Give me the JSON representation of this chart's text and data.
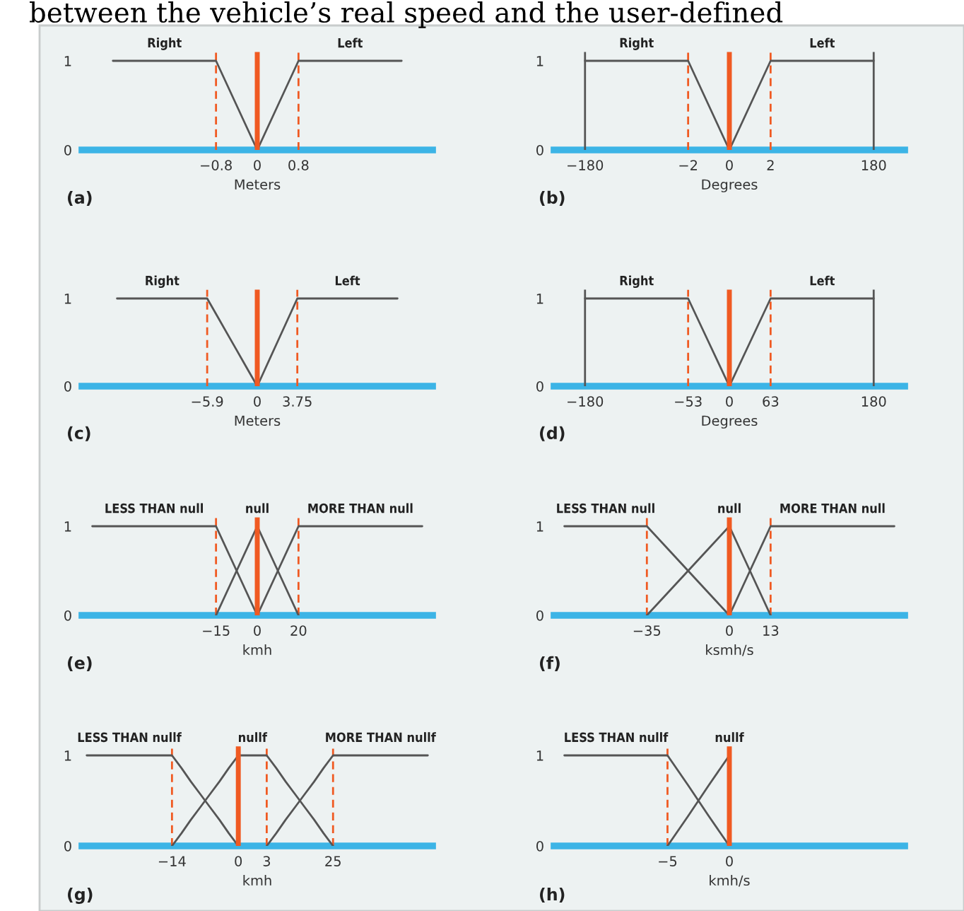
{
  "chart_data": [
    {
      "type": "line",
      "xlabel": "Meters",
      "annotations": [
        "(a)",
        "between the vehicle’s real speed and the user-defined"
      ],
      "categories": [
        null,
        null,
        null,
        null,
        null,
        null,
        "−0.8",
        null,
        "0",
        null,
        "0.8",
        null,
        null,
        null,
        null,
        null,
        null
      ],
      "series": [
        {
          "name": "Right",
          "color": "#555555",
          "values": [
            null,
            1,
            1,
            1,
            1,
            1,
            1,
            0.5,
            0,
            null,
            null,
            null,
            null,
            null,
            null,
            null,
            null
          ]
        },
        {
          "name": "Left",
          "color": "#555555",
          "values": [
            null,
            null,
            null,
            null,
            null,
            null,
            null,
            null,
            0,
            0.5,
            1,
            1,
            1,
            1,
            1,
            1,
            null
          ]
        }
      ],
      "ylim": [
        0,
        1.1
      ],
      "yticks": [
        0,
        1
      ],
      "ref_lines": [
        {
          "axis": "x",
          "value": "0",
          "color": "#f05a22",
          "line_style": "solid"
        },
        {
          "axis": "x",
          "value": "−0.8",
          "color": "#f05a22",
          "line_style": "dashed"
        },
        {
          "axis": "x",
          "value": "0.8",
          "color": "#f05a22",
          "line_style": "dashed"
        }
      ]
    },
    {
      "type": "line",
      "xlabel": "Degrees",
      "annotations": [
        "(b)"
      ],
      "categories": [
        null,
        "−180",
        null,
        null,
        null,
        null,
        "−2",
        null,
        "0",
        null,
        "2",
        null,
        null,
        null,
        null,
        "180",
        null
      ],
      "series": [
        {
          "name": "Right",
          "color": "#555555",
          "values": [
            null,
            1,
            1,
            1,
            1,
            1,
            1,
            0.5,
            0,
            null,
            null,
            null,
            null,
            null,
            null,
            null,
            null
          ]
        },
        {
          "name": "Left",
          "color": "#555555",
          "values": [
            null,
            null,
            null,
            null,
            null,
            null,
            null,
            null,
            0,
            0.5,
            1,
            1,
            1,
            1,
            1,
            1,
            null
          ]
        }
      ],
      "ylim": [
        0,
        1.1
      ],
      "yticks": [
        0,
        1
      ],
      "ref_lines": [
        {
          "axis": "x",
          "value": "0",
          "color": "#f05a22",
          "line_style": "solid"
        },
        {
          "axis": "x",
          "value": "−2",
          "color": "#f05a22",
          "line_style": "dashed"
        },
        {
          "axis": "x",
          "value": "2",
          "color": "#f05a22",
          "line_style": "dashed"
        },
        {
          "axis": "x",
          "value": "−180",
          "color": "#555555",
          "line_style": "solid"
        },
        {
          "axis": "x",
          "value": "180",
          "color": "#555555",
          "line_style": "solid"
        }
      ]
    },
    {
      "type": "line",
      "xlabel": "Meters",
      "annotations": [
        "(c)"
      ],
      "categories": [
        null,
        null,
        null,
        null,
        null,
        null,
        null,
        null,
        null,
        null,
        null,
        null,
        "−5.9",
        null,
        null,
        null,
        null,
        "0",
        null,
        null,
        null,
        "3.75",
        null,
        null,
        null,
        null,
        null,
        null,
        null,
        null,
        null,
        null,
        null,
        null,
        null
      ],
      "series": [
        {
          "name": "Right",
          "color": "#555555",
          "values": [
            null,
            null,
            null,
            1,
            1,
            1,
            1,
            1,
            1,
            1,
            1,
            1,
            1,
            0.8,
            0.6,
            0.4,
            0.2,
            0,
            null,
            null,
            null,
            null,
            null,
            null,
            null,
            null,
            null,
            null,
            null,
            null,
            null,
            null,
            null,
            null,
            null
          ]
        },
        {
          "name": "Left",
          "color": "#555555",
          "values": [
            null,
            null,
            null,
            null,
            null,
            null,
            null,
            null,
            null,
            null,
            null,
            null,
            null,
            null,
            null,
            null,
            null,
            0,
            0.25,
            0.5,
            0.75,
            1,
            1,
            1,
            1,
            1,
            1,
            1,
            1,
            1,
            1,
            1,
            null,
            null,
            null
          ]
        }
      ],
      "ylim": [
        0,
        1.1
      ],
      "yticks": [
        0,
        1
      ],
      "ref_lines": [
        {
          "axis": "x",
          "value": "0",
          "color": "#f05a22",
          "line_style": "solid"
        },
        {
          "axis": "x",
          "value": "−5.9",
          "color": "#f05a22",
          "line_style": "dashed"
        },
        {
          "axis": "x",
          "value": "3.75",
          "color": "#f05a22",
          "line_style": "dashed"
        }
      ]
    },
    {
      "type": "line",
      "xlabel": "Degrees",
      "annotations": [
        "(d)"
      ],
      "categories": [
        null,
        "−180",
        null,
        null,
        null,
        null,
        "−53",
        null,
        "0",
        null,
        "63",
        null,
        null,
        null,
        null,
        "180",
        null
      ],
      "series": [
        {
          "name": "Right",
          "color": "#555555",
          "values": [
            null,
            1,
            1,
            1,
            1,
            1,
            1,
            0.5,
            0,
            null,
            null,
            null,
            null,
            null,
            null,
            null,
            null
          ]
        },
        {
          "name": "Left",
          "color": "#555555",
          "values": [
            null,
            null,
            null,
            null,
            null,
            null,
            null,
            null,
            0,
            0.5,
            1,
            1,
            1,
            1,
            1,
            1,
            null
          ]
        }
      ],
      "ylim": [
        0,
        1.1
      ],
      "yticks": [
        0,
        1
      ],
      "ref_lines": [
        {
          "axis": "x",
          "value": "0",
          "color": "#f05a22",
          "line_style": "solid"
        },
        {
          "axis": "x",
          "value": "−53",
          "color": "#f05a22",
          "line_style": "dashed"
        },
        {
          "axis": "x",
          "value": "63",
          "color": "#f05a22",
          "line_style": "dashed"
        },
        {
          "axis": "x",
          "value": "−180",
          "color": "#555555",
          "line_style": "solid"
        },
        {
          "axis": "x",
          "value": "180",
          "color": "#555555",
          "line_style": "solid"
        }
      ]
    },
    {
      "type": "line",
      "xlabel": "kmh",
      "annotations": [
        "(e)"
      ],
      "categories": [
        null,
        null,
        null,
        null,
        null,
        null,
        "−15",
        null,
        "0",
        null,
        "20",
        null,
        null,
        null,
        null,
        null,
        null
      ],
      "series": [
        {
          "name": "LESS THAN null",
          "color": "#555555",
          "values": [
            1,
            1,
            1,
            1,
            1,
            1,
            1,
            0.5,
            0,
            null,
            null,
            null,
            null,
            null,
            null,
            null,
            null
          ]
        },
        {
          "name": "null",
          "color": "#555555",
          "values": [
            null,
            null,
            null,
            null,
            null,
            null,
            0,
            0.5,
            1,
            0.5,
            0,
            null,
            null,
            null,
            null,
            null,
            null
          ]
        },
        {
          "name": "MORE THAN null",
          "color": "#555555",
          "values": [
            null,
            null,
            null,
            null,
            null,
            null,
            null,
            null,
            0,
            0.5,
            1,
            1,
            1,
            1,
            1,
            1,
            1
          ]
        }
      ],
      "ylim": [
        0,
        1.1
      ],
      "yticks": [
        0,
        1
      ],
      "ref_lines": [
        {
          "axis": "x",
          "value": "0",
          "color": "#f05a22",
          "line_style": "solid"
        },
        {
          "axis": "x",
          "value": "−15",
          "color": "#f05a22",
          "line_style": "dashed"
        },
        {
          "axis": "x",
          "value": "20",
          "color": "#f05a22",
          "line_style": "dashed"
        }
      ]
    },
    {
      "type": "line",
      "xlabel": "ksmh/s",
      "annotations": [
        "(f)"
      ],
      "categories": [
        null,
        null,
        null,
        null,
        "−35",
        null,
        null,
        null,
        "0",
        null,
        "13",
        null,
        null,
        null,
        null,
        null,
        null
      ],
      "series": [
        {
          "name": "LESS THAN null",
          "color": "#555555",
          "values": [
            1,
            1,
            1,
            1,
            1,
            0.75,
            0.5,
            0.25,
            0,
            null,
            null,
            null,
            null,
            null,
            null,
            null,
            null
          ]
        },
        {
          "name": "null",
          "color": "#555555",
          "values": [
            null,
            null,
            null,
            null,
            0,
            0.25,
            0.5,
            0.75,
            1,
            0.5,
            0,
            null,
            null,
            null,
            null,
            null,
            null
          ]
        },
        {
          "name": "MORE THAN null",
          "color": "#555555",
          "values": [
            null,
            null,
            null,
            null,
            null,
            null,
            null,
            null,
            0,
            0.5,
            1,
            1,
            1,
            1,
            1,
            1,
            1
          ]
        }
      ],
      "ylim": [
        0,
        1.1
      ],
      "yticks": [
        0,
        1
      ],
      "ref_lines": [
        {
          "axis": "x",
          "value": "0",
          "color": "#f05a22",
          "line_style": "solid"
        },
        {
          "axis": "x",
          "value": "−35",
          "color": "#f05a22",
          "line_style": "dashed"
        },
        {
          "axis": "x",
          "value": "13",
          "color": "#f05a22",
          "line_style": "dashed"
        }
      ]
    },
    {
      "type": "line",
      "xlabel": "kmh",
      "annotations": [
        "(g)"
      ],
      "categories": [
        null,
        null,
        null,
        null,
        null,
        null,
        null,
        null,
        null,
        "−14",
        null,
        null,
        null,
        null,
        null,
        null,
        "0",
        null,
        null,
        "3",
        null,
        null,
        null,
        null,
        null,
        null,
        "25",
        null,
        null,
        null,
        null,
        null,
        null,
        null,
        null,
        null,
        null
      ],
      "series": [
        {
          "name": "LESS THAN nullf",
          "color": "#555555",
          "values": [
            1,
            1,
            1,
            1,
            1,
            1,
            1,
            1,
            1,
            1,
            0.86,
            0.71,
            0.57,
            0.43,
            0.29,
            0.14,
            0,
            null,
            null,
            null,
            null,
            null,
            null,
            null,
            null,
            null,
            null,
            null,
            null,
            null,
            null,
            null,
            null,
            null,
            null,
            null,
            null
          ]
        },
        {
          "name": "nullf",
          "color": "#555555",
          "values": [
            null,
            null,
            null,
            null,
            null,
            null,
            null,
            null,
            null,
            0,
            0.14,
            0.29,
            0.43,
            0.57,
            0.71,
            0.86,
            1,
            1,
            1,
            1,
            0.86,
            0.71,
            0.57,
            0.43,
            0.29,
            0.14,
            0,
            null,
            null,
            null,
            null,
            null,
            null,
            null,
            null,
            null,
            null
          ]
        },
        {
          "name": "MORE THAN nullf",
          "color": "#555555",
          "values": [
            null,
            null,
            null,
            null,
            null,
            null,
            null,
            null,
            null,
            null,
            null,
            null,
            null,
            null,
            null,
            null,
            null,
            null,
            null,
            0,
            0.14,
            0.29,
            0.43,
            0.57,
            0.71,
            0.86,
            1,
            1,
            1,
            1,
            1,
            1,
            1,
            1,
            1,
            1,
            1
          ]
        }
      ],
      "ylim": [
        0,
        1.1
      ],
      "yticks": [
        0,
        1
      ],
      "ref_lines": [
        {
          "axis": "x",
          "value": "0",
          "color": "#f05a22",
          "line_style": "solid"
        },
        {
          "axis": "x",
          "value": "−14",
          "color": "#f05a22",
          "line_style": "dashed"
        },
        {
          "axis": "x",
          "value": "3",
          "color": "#f05a22",
          "line_style": "dashed"
        },
        {
          "axis": "x",
          "value": "25",
          "color": "#f05a22",
          "line_style": "dashed"
        }
      ]
    },
    {
      "type": "line",
      "xlabel": "kmh/s",
      "annotations": [
        "(h)"
      ],
      "categories": [
        null,
        null,
        null,
        null,
        null,
        "−5",
        null,
        null,
        "0",
        null,
        null,
        null,
        null,
        null,
        null,
        null,
        null
      ],
      "series": [
        {
          "name": "LESS THAN nullf",
          "color": "#555555",
          "values": [
            1,
            1,
            1,
            1,
            1,
            1,
            0.67,
            0.33,
            0,
            null,
            null,
            null,
            null,
            null,
            null,
            null,
            null
          ]
        },
        {
          "name": "nullf",
          "color": "#555555",
          "values": [
            null,
            null,
            null,
            null,
            null,
            0,
            0.33,
            0.67,
            1,
            null,
            null,
            null,
            null,
            null,
            null,
            null,
            null
          ]
        }
      ],
      "ylim": [
        0,
        1.1
      ],
      "yticks": [
        0,
        1
      ],
      "ref_lines": [
        {
          "axis": "x",
          "value": "0",
          "color": "#f05a22",
          "line_style": "solid"
        },
        {
          "axis": "x",
          "value": "−5",
          "color": "#f05a22",
          "line_style": "dashed"
        }
      ]
    }
  ]
}
